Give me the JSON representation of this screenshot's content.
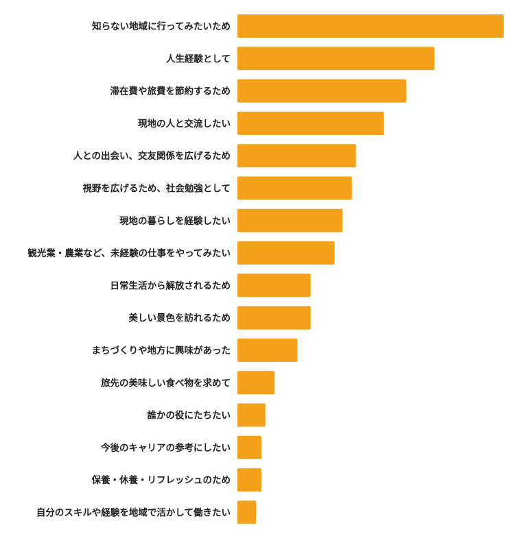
{
  "chart_data": {
    "type": "bar",
    "orientation": "horizontal",
    "title": "",
    "xlabel": "",
    "ylabel": "",
    "grid": false,
    "legend": "none",
    "bar_color": "#F3A11B",
    "categories": [
      "知らない地域に行ってみたいため",
      "人生経験として",
      "滞在費や旅費を節約するため",
      "現地の人と交流したい",
      "人との出会い、交友関係を広げるため",
      "視野を広げるため、社会勉強として",
      "現地の暮らしを経験したい",
      "観光業・農業など、未経験の仕事をやってみたい",
      "日常生活から解放されるため",
      "美しい景色を訪れるため",
      "まちづくりや地方に興味があった",
      "旅先の美味しい食べ物を求めて",
      "誰かの役にたちたい",
      "今後のキャリアの参考にしたい",
      "保養・休養・リフレッシュのため",
      "自分のスキルや経験を地域で活かして働きたい"
    ],
    "values": [
      100,
      74,
      63.5,
      55,
      44.5,
      43,
      39.5,
      36.5,
      27.5,
      27.5,
      22.5,
      14,
      10.5,
      9,
      9,
      7
    ],
    "xlim": [
      0,
      100
    ]
  }
}
